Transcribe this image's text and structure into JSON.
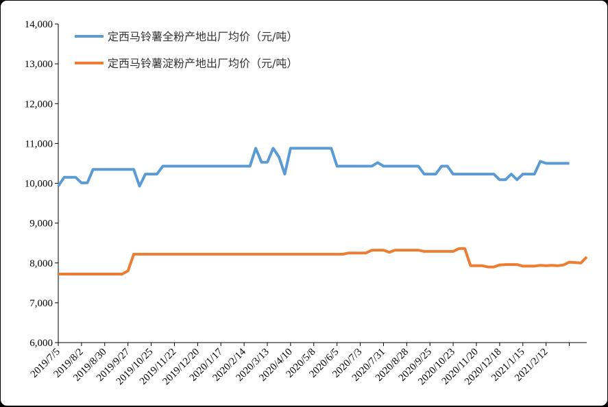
{
  "chart_data": {
    "type": "line",
    "title": "",
    "xlabel": "",
    "ylabel": "",
    "ylim": [
      6000,
      14000
    ],
    "y_ticks": [
      "6,000",
      "7,000",
      "8,000",
      "9,000",
      "10,000",
      "11,000",
      "12,000",
      "13,000",
      "14,000"
    ],
    "x_ticks": [
      "2019/7/5",
      "2019/8/2",
      "2019/8/30",
      "2019/9/27",
      "2019/10/25",
      "2019/11/22",
      "2019/12/20",
      "2020/1/17",
      "2020/2/14",
      "2020/3/13",
      "2020/4/10",
      "2020/5/8",
      "2020/6/5",
      "2020/7/3",
      "2020/7/31",
      "2020/8/28",
      "2020/9/25",
      "2020/10/23",
      "2020/11/20",
      "2020/12/18",
      "2021/1/15",
      "2021/2/12"
    ],
    "grid": false,
    "legend_position": "top-left",
    "series": [
      {
        "name": "定西马铃薯全粉产地出厂均价（元/吨）",
        "color": "#5b9bd5",
        "points": [
          [
            0,
            9930
          ],
          [
            1,
            10150
          ],
          [
            3,
            10150
          ],
          [
            4,
            10010
          ],
          [
            5,
            10010
          ],
          [
            6,
            10350
          ],
          [
            13,
            10350
          ],
          [
            14,
            9930
          ],
          [
            15,
            10230
          ],
          [
            17,
            10230
          ],
          [
            18,
            10430
          ],
          [
            33,
            10430
          ],
          [
            34,
            10880
          ],
          [
            35,
            10530
          ],
          [
            36,
            10530
          ],
          [
            37,
            10880
          ],
          [
            38,
            10660
          ],
          [
            39,
            10230
          ],
          [
            40,
            10880
          ],
          [
            47,
            10880
          ],
          [
            48,
            10430
          ],
          [
            54,
            10430
          ],
          [
            55,
            10520
          ],
          [
            56,
            10430
          ],
          [
            62,
            10430
          ],
          [
            63,
            10230
          ],
          [
            65,
            10230
          ],
          [
            66,
            10430
          ],
          [
            67,
            10430
          ],
          [
            68,
            10230
          ],
          [
            75,
            10230
          ],
          [
            76,
            10090
          ],
          [
            77,
            10090
          ],
          [
            78,
            10230
          ],
          [
            79,
            10090
          ],
          [
            80,
            10230
          ],
          [
            82,
            10230
          ],
          [
            83,
            10550
          ],
          [
            84,
            10500
          ],
          [
            88,
            10500
          ]
        ]
      },
      {
        "name": "定西马铃薯淀粉产地出厂均价（元/吨）",
        "color": "#ed7d31",
        "points": [
          [
            0,
            7720
          ],
          [
            11,
            7720
          ],
          [
            12,
            7800
          ],
          [
            13,
            8220
          ],
          [
            49,
            8220
          ],
          [
            50,
            8250
          ],
          [
            53,
            8250
          ],
          [
            54,
            8320
          ],
          [
            56,
            8320
          ],
          [
            57,
            8270
          ],
          [
            58,
            8320
          ],
          [
            62,
            8320
          ],
          [
            63,
            8290
          ],
          [
            68,
            8290
          ],
          [
            69,
            8360
          ],
          [
            70,
            8360
          ],
          [
            71,
            7930
          ],
          [
            73,
            7930
          ],
          [
            74,
            7900
          ],
          [
            75,
            7900
          ],
          [
            76,
            7950
          ],
          [
            77,
            7960
          ],
          [
            79,
            7960
          ],
          [
            80,
            7920
          ],
          [
            82,
            7920
          ],
          [
            83,
            7940
          ],
          [
            84,
            7930
          ],
          [
            85,
            7940
          ],
          [
            86,
            7930
          ],
          [
            87,
            7950
          ],
          [
            88,
            8020
          ],
          [
            90,
            8000
          ],
          [
            91,
            8150
          ]
        ]
      }
    ]
  }
}
